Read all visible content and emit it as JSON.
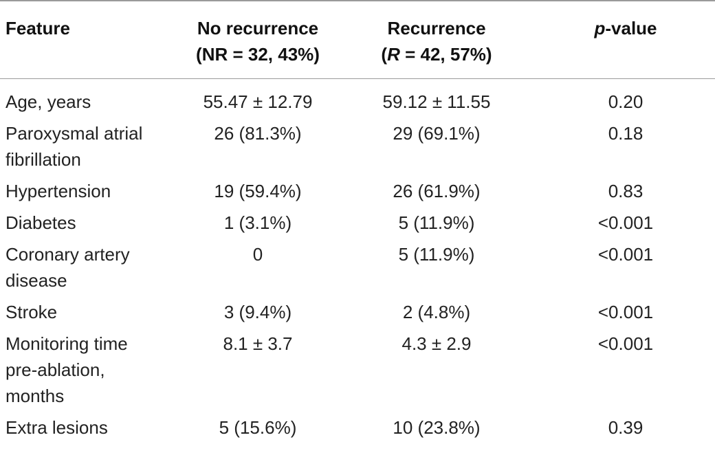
{
  "table": {
    "headers": {
      "feature": "Feature",
      "no_recurrence": {
        "line1": "No recurrence",
        "line2": "(NR = 32, 43%)"
      },
      "recurrence": {
        "line1": "Recurrence",
        "line2_prefix": "(",
        "line2_italic": "R",
        "line2_suffix": " = 42, 57%)"
      },
      "pvalue": {
        "italic": "p",
        "suffix": "-value"
      }
    },
    "rows": [
      {
        "feature": [
          "Age, years"
        ],
        "nr": "55.47 ± 12.79",
        "r": "59.12 ± 11.55",
        "p": "0.20"
      },
      {
        "feature": [
          "Paroxysmal atrial",
          "fibrillation"
        ],
        "nr": "26 (81.3%)",
        "r": "29 (69.1%)",
        "p": "0.18"
      },
      {
        "feature": [
          "Hypertension"
        ],
        "nr": "19 (59.4%)",
        "r": "26 (61.9%)",
        "p": "0.83"
      },
      {
        "feature": [
          "Diabetes"
        ],
        "nr": "1 (3.1%)",
        "r": "5 (11.9%)",
        "p": "<0.001"
      },
      {
        "feature": [
          "Coronary artery",
          "disease"
        ],
        "nr": "0",
        "r": "5 (11.9%)",
        "p": "<0.001"
      },
      {
        "feature": [
          "Stroke"
        ],
        "nr": "3 (9.4%)",
        "r": "2 (4.8%)",
        "p": "<0.001"
      },
      {
        "feature": [
          "Monitoring time",
          "pre-ablation,",
          "months"
        ],
        "nr": "8.1 ± 3.7",
        "r": "4.3 ± 2.9",
        "p": "<0.001"
      },
      {
        "feature": [
          "Extra lesions"
        ],
        "nr": "5 (15.6%)",
        "r": "10 (23.8%)",
        "p": "0.39"
      }
    ]
  }
}
